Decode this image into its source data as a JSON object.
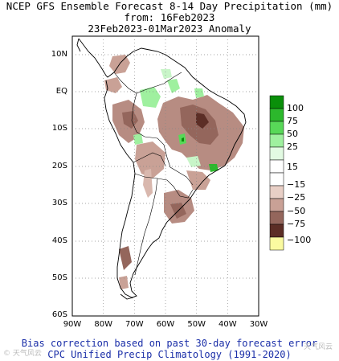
{
  "title": {
    "line1": "NCEP GFS Ensemble Forecast 8-14 Day Precipitation (mm)",
    "line2": "from: 16Feb2023",
    "line3": "23Feb2023-01Mar2023 Anomaly"
  },
  "axes": {
    "lat_labels": [
      "10N",
      "EQ",
      "10S",
      "20S",
      "30S",
      "40S",
      "50S",
      "60S"
    ],
    "lon_labels": [
      "90W",
      "80W",
      "70W",
      "60W",
      "50W",
      "40W",
      "30W"
    ]
  },
  "legend": {
    "labels": [
      "100",
      "75",
      "50",
      "25",
      "15",
      "−15",
      "−25",
      "−50",
      "−75",
      "−100"
    ],
    "colors": [
      "#0a8f0a",
      "#2cb82c",
      "#58d858",
      "#9ff09f",
      "#e2fae2",
      "#ffffff",
      "#e8cfc6",
      "#c9a196",
      "#94665c",
      "#5c2e26",
      "#fafaa0"
    ]
  },
  "footer": {
    "line1": "Bias correction based on past 30-day forecast error",
    "line2": "CPC Unified Precip Climatology (1991-2020)"
  },
  "watermark": {
    "left": "© 天气风云",
    "right": "天气风云"
  }
}
